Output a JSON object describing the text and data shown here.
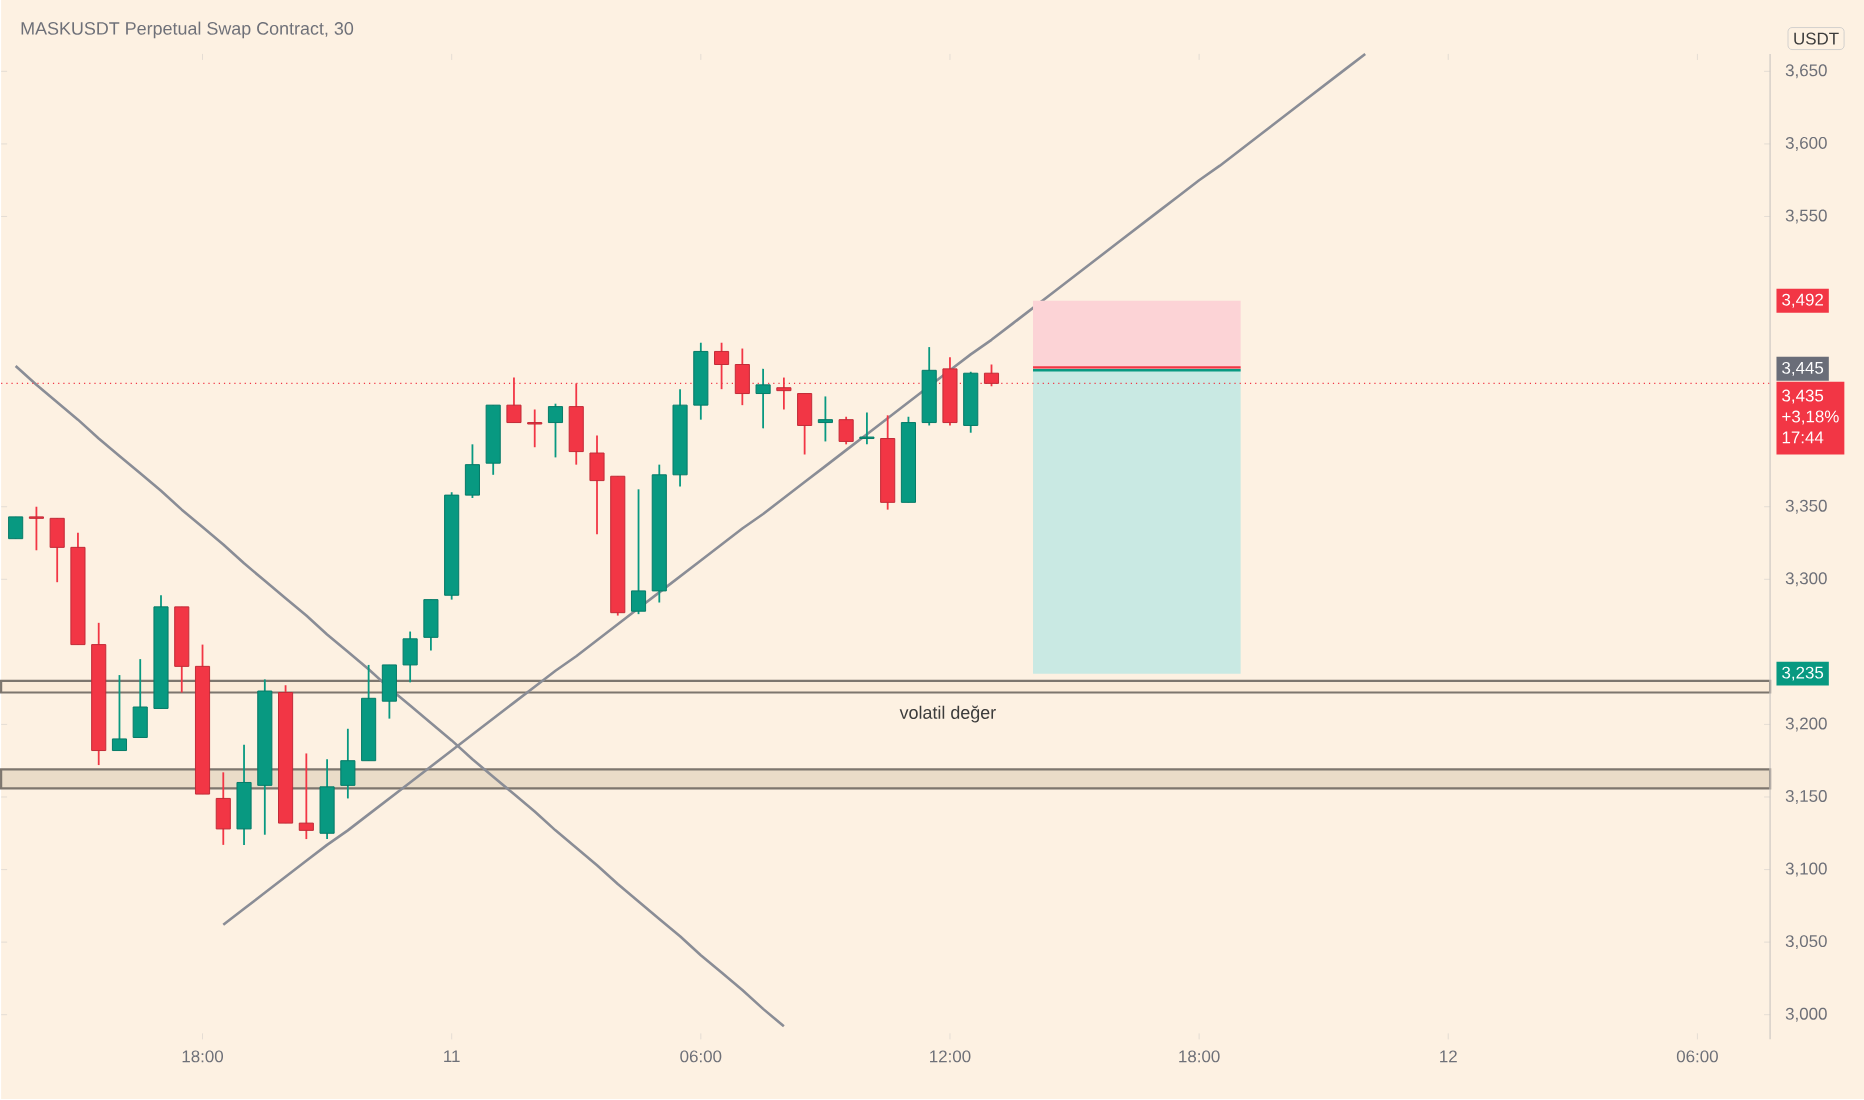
{
  "chart_data": {
    "type": "candlestick",
    "title": "MASKUSDT Perpetual Swap Contract, 30",
    "ylabel": "USDT",
    "categories": [
      null,
      null,
      null,
      null,
      null,
      null,
      null,
      null,
      null,
      "18:00",
      null,
      null,
      null,
      null,
      null,
      null,
      null,
      null,
      null,
      null,
      null,
      "11",
      null,
      null,
      null,
      null,
      null,
      null,
      null,
      null,
      null,
      null,
      null,
      "06:00",
      null,
      null,
      null,
      null,
      null,
      null,
      null,
      null,
      null,
      null,
      null,
      "12:00",
      null,
      null,
      null,
      null,
      null,
      null,
      null,
      null,
      null,
      null,
      null,
      "18:00",
      null,
      null,
      null,
      null,
      null,
      null,
      null,
      null,
      null,
      null,
      null,
      "12",
      null,
      null,
      null,
      null,
      null,
      null,
      null,
      null,
      null,
      null,
      null,
      "06:00",
      null,
      null,
      null
    ],
    "ohlc": [
      [
        3328,
        3343,
        3328,
        3343
      ],
      [
        3343,
        3350,
        3320,
        3342
      ],
      [
        3342,
        3342,
        3298,
        3322
      ],
      [
        3322,
        3332,
        3255,
        3255
      ],
      [
        3255,
        3270,
        3172,
        3182
      ],
      [
        3182,
        3234,
        3182,
        3190
      ],
      [
        3191,
        3245,
        3191,
        3212
      ],
      [
        3211,
        3289,
        3211,
        3281
      ],
      [
        3281,
        3281,
        3222,
        3240
      ],
      [
        3240,
        3255,
        3152,
        3152
      ],
      [
        3149,
        3167,
        3117,
        3128
      ],
      [
        3128,
        3186,
        3117,
        3160
      ],
      [
        3158,
        3231,
        3124,
        3223
      ],
      [
        3222,
        3227,
        3132,
        3132
      ],
      [
        3132,
        3180,
        3121,
        3127
      ],
      [
        3125,
        3176,
        3121,
        3157
      ],
      [
        3158,
        3197,
        3149,
        3175
      ],
      [
        3175,
        3241,
        3175,
        3218
      ],
      [
        3216,
        3241,
        3204,
        3241
      ],
      [
        3241,
        3264,
        3229,
        3259
      ],
      [
        3260,
        3286,
        3251,
        3286
      ],
      [
        3289,
        3360,
        3286,
        3358
      ],
      [
        3358,
        3393,
        3356,
        3379
      ],
      [
        3380,
        3420,
        3372,
        3420
      ],
      [
        3420,
        3439,
        3408,
        3408
      ],
      [
        3408,
        3417,
        3391,
        3407
      ],
      [
        3408,
        3421,
        3384,
        3419
      ],
      [
        3419,
        3435,
        3379,
        3388
      ],
      [
        3387,
        3399,
        3331,
        3368
      ],
      [
        3371,
        3371,
        3275,
        3277
      ],
      [
        3278,
        3362,
        3276,
        3292
      ],
      [
        3292,
        3379,
        3284,
        3372
      ],
      [
        3372,
        3431,
        3364,
        3420
      ],
      [
        3420,
        3463,
        3410,
        3457
      ],
      [
        3457,
        3463,
        3431,
        3448
      ],
      [
        3448,
        3459,
        3420,
        3428
      ],
      [
        3428,
        3445,
        3404,
        3434
      ],
      [
        3432,
        3439,
        3417,
        3430
      ],
      [
        3428,
        3428,
        3386,
        3406
      ],
      [
        3408,
        3426,
        3395,
        3410
      ],
      [
        3410,
        3412,
        3393,
        3395
      ],
      [
        3397,
        3415,
        3393,
        3398
      ],
      [
        3397,
        3413,
        3348,
        3353
      ],
      [
        3353,
        3412,
        3353,
        3408
      ],
      [
        3408,
        3460,
        3406,
        3444
      ],
      [
        3445,
        3453,
        3406,
        3408
      ],
      [
        3406,
        3443,
        3401,
        3442
      ],
      [
        3442,
        3448,
        3433,
        3435
      ],
      null,
      null,
      null,
      null,
      null,
      null,
      null,
      null,
      null,
      null,
      null,
      null,
      null,
      null,
      null,
      null,
      null,
      null,
      null,
      null,
      null,
      null,
      null,
      null,
      null,
      null,
      null,
      null,
      null,
      null,
      null,
      null,
      null,
      null,
      null,
      null,
      null
    ],
    "series": [
      {
        "type": "line",
        "color": "#8a8d96",
        "values": [
          3447,
          3434,
          3422,
          3410,
          3397,
          3385,
          3373,
          3361,
          3348,
          3336,
          3324,
          3311,
          3299,
          3287,
          3275,
          3262,
          3250,
          3238,
          3225,
          3213,
          3201,
          3189,
          3176,
          3164,
          3152,
          3140,
          3127,
          3115,
          3103,
          3090,
          3078,
          3066,
          3054,
          3041,
          3029,
          3017,
          3004,
          2992,
          null,
          null,
          null,
          null,
          null,
          null,
          null,
          null,
          null,
          null,
          null,
          null,
          null,
          null,
          null,
          null,
          null,
          null,
          null,
          null,
          null,
          null,
          null,
          null,
          null,
          null,
          null,
          null,
          null,
          null,
          null,
          null,
          null,
          null,
          null,
          null,
          null,
          null,
          null,
          null,
          null,
          null,
          null,
          null,
          null,
          null,
          null
        ]
      },
      {
        "type": "line",
        "color": "#8a8d96",
        "values": [
          null,
          null,
          null,
          null,
          null,
          null,
          null,
          null,
          null,
          null,
          3062,
          3073,
          3084,
          3095,
          3106,
          3117,
          3127,
          3138,
          3149,
          3160,
          3171,
          3182,
          3193,
          3204,
          3215,
          3226,
          3237,
          3247,
          3258,
          3269,
          3280,
          3291,
          3302,
          3313,
          3324,
          3335,
          3345,
          3356,
          3367,
          3378,
          3389,
          3400,
          3411,
          3422,
          3433,
          3444,
          3455,
          3465,
          3476,
          3487,
          3498,
          3509,
          3520,
          3531,
          3542,
          3553,
          3564,
          3575,
          3585,
          3596,
          3607,
          3618,
          3629,
          3640,
          3651,
          3662,
          null,
          null,
          null,
          null,
          null,
          null,
          null,
          null,
          null,
          null,
          null,
          null,
          null,
          null,
          null,
          null,
          null,
          null,
          null
        ]
      },
      {
        "type": "line",
        "color": "#f23645",
        "values": [
          null,
          null,
          null,
          null,
          null,
          null,
          null,
          null,
          null,
          null,
          null,
          null,
          null,
          null,
          null,
          null,
          null,
          null,
          null,
          null,
          null,
          null,
          null,
          null,
          null,
          null,
          null,
          null,
          null,
          null,
          null,
          null,
          null,
          null,
          null,
          null,
          null,
          null,
          null,
          null,
          null,
          null,
          null,
          null,
          null,
          null,
          null,
          null,
          null,
          3445,
          3445,
          3445,
          3445,
          3445,
          3445,
          3445,
          3445,
          3445,
          3445,
          3445,
          null,
          null,
          null,
          null,
          null,
          null,
          null,
          null,
          null,
          null,
          null,
          null,
          null,
          null,
          null,
          null,
          null,
          null,
          null,
          null,
          null,
          null,
          null,
          null,
          null
        ],
        "lower": [
          null,
          null,
          null,
          null,
          null,
          null,
          null,
          null,
          null,
          null,
          null,
          null,
          null,
          null,
          null,
          null,
          null,
          null,
          null,
          null,
          null,
          null,
          null,
          null,
          null,
          null,
          null,
          null,
          null,
          null,
          null,
          null,
          null,
          null,
          null,
          null,
          null,
          null,
          null,
          null,
          null,
          null,
          null,
          null,
          null,
          null,
          null,
          null,
          null,
          3445,
          3445,
          3445,
          3445,
          3445,
          3445,
          3445,
          3445,
          3445,
          3445,
          3445,
          null,
          null,
          null,
          null,
          null,
          null,
          null,
          null,
          null,
          null,
          null,
          null,
          null,
          null,
          null,
          null,
          null,
          null,
          null,
          null,
          null,
          null,
          null,
          null,
          null
        ],
        "upper": [
          null,
          null,
          null,
          null,
          null,
          null,
          null,
          null,
          null,
          null,
          null,
          null,
          null,
          null,
          null,
          null,
          null,
          null,
          null,
          null,
          null,
          null,
          null,
          null,
          null,
          null,
          null,
          null,
          null,
          null,
          null,
          null,
          null,
          null,
          null,
          null,
          null,
          null,
          null,
          null,
          null,
          null,
          null,
          null,
          null,
          null,
          null,
          null,
          null,
          3492,
          3492,
          3492,
          3492,
          3492,
          3492,
          3492,
          3492,
          3492,
          3492,
          3492,
          null,
          null,
          null,
          null,
          null,
          null,
          null,
          null,
          null,
          null,
          null,
          null,
          null,
          null,
          null,
          null,
          null,
          null,
          null,
          null,
          null,
          null,
          null,
          null,
          null
        ]
      },
      {
        "type": "line",
        "color": "#089981",
        "values": [
          null,
          null,
          null,
          null,
          null,
          null,
          null,
          null,
          null,
          null,
          null,
          null,
          null,
          null,
          null,
          null,
          null,
          null,
          null,
          null,
          null,
          null,
          null,
          null,
          null,
          null,
          null,
          null,
          null,
          null,
          null,
          null,
          null,
          null,
          null,
          null,
          null,
          null,
          null,
          null,
          null,
          null,
          null,
          null,
          null,
          null,
          null,
          null,
          null,
          3445,
          3445,
          3445,
          3445,
          3445,
          3445,
          3445,
          3445,
          3445,
          3445,
          3445,
          null,
          null,
          null,
          null,
          null,
          null,
          null,
          null,
          null,
          null,
          null,
          null,
          null,
          null,
          null,
          null,
          null,
          null,
          null,
          null,
          null,
          null,
          null,
          null,
          null
        ],
        "lower": [
          null,
          null,
          null,
          null,
          null,
          null,
          null,
          null,
          null,
          null,
          null,
          null,
          null,
          null,
          null,
          null,
          null,
          null,
          null,
          null,
          null,
          null,
          null,
          null,
          null,
          null,
          null,
          null,
          null,
          null,
          null,
          null,
          null,
          null,
          null,
          null,
          null,
          null,
          null,
          null,
          null,
          null,
          null,
          null,
          null,
          null,
          null,
          null,
          null,
          3235,
          3235,
          3235,
          3235,
          3235,
          3235,
          3235,
          3235,
          3235,
          3235,
          3235,
          null,
          null,
          null,
          null,
          null,
          null,
          null,
          null,
          null,
          null,
          null,
          null,
          null,
          null,
          null,
          null,
          null,
          null,
          null,
          null,
          null,
          null,
          null,
          null,
          null
        ],
        "upper": [
          null,
          null,
          null,
          null,
          null,
          null,
          null,
          null,
          null,
          null,
          null,
          null,
          null,
          null,
          null,
          null,
          null,
          null,
          null,
          null,
          null,
          null,
          null,
          null,
          null,
          null,
          null,
          null,
          null,
          null,
          null,
          null,
          null,
          null,
          null,
          null,
          null,
          null,
          null,
          null,
          null,
          null,
          null,
          null,
          null,
          null,
          null,
          null,
          null,
          3445,
          3445,
          3445,
          3445,
          3445,
          3445,
          3445,
          3445,
          3445,
          3445,
          3445,
          null,
          null,
          null,
          null,
          null,
          null,
          null,
          null,
          null,
          null,
          null,
          null,
          null,
          null,
          null,
          null,
          null,
          null,
          null,
          null,
          null,
          null,
          null,
          null,
          null
        ]
      }
    ],
    "bands": [
      {
        "axis": "y",
        "from": 3222,
        "to": 3230,
        "label": "volatil değer",
        "color": "#fbebd8"
      },
      {
        "axis": "y",
        "from": 3156,
        "to": 3169,
        "color": "#eadcc8"
      }
    ],
    "ref_lines": [
      {
        "axis": "y",
        "value": 3435,
        "label": "3,435",
        "color": "#f23645",
        "line_style": "dotted"
      }
    ],
    "annotations": [
      "+3,18%",
      "17:44",
      "3,492",
      "3,445",
      "3,235"
    ],
    "ylim": [
      2983,
      3662
    ],
    "yticks": [
      {
        "value": 3000,
        "label": "3,000"
      },
      {
        "value": 3050,
        "label": "3,050"
      },
      {
        "value": 3100,
        "label": "3,100"
      },
      {
        "value": 3150,
        "label": "3,150"
      },
      {
        "value": 3200,
        "label": "3,200"
      },
      {
        "value": 3300,
        "label": "3,300"
      },
      {
        "value": 3350,
        "label": "3,350"
      },
      {
        "value": 3550,
        "label": "3,550"
      },
      {
        "value": 3600,
        "label": "3,600"
      },
      {
        "value": 3650,
        "label": "3,650"
      }
    ],
    "grid": false,
    "marker": "none"
  }
}
